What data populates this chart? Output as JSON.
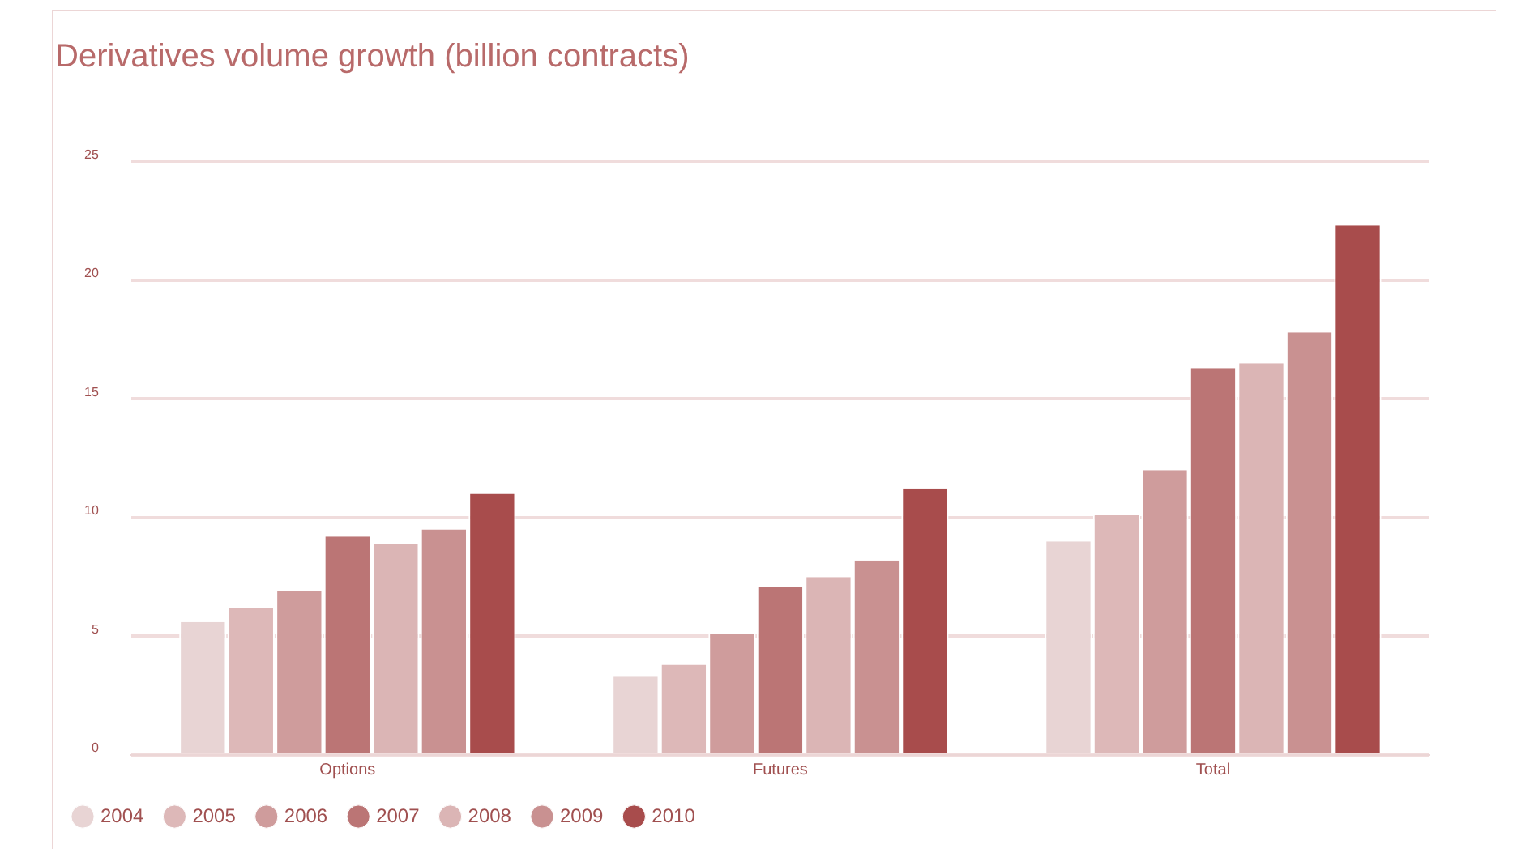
{
  "chart_data": {
    "type": "bar",
    "title": "Derivatives volume growth (billion contracts)",
    "categories": [
      "Options",
      "Futures",
      "Total"
    ],
    "series": [
      {
        "name": "2004",
        "color": "#e8d4d4",
        "values": [
          5.6,
          3.3,
          9.0
        ]
      },
      {
        "name": "2005",
        "color": "#ddb8b8",
        "values": [
          6.2,
          3.8,
          10.1
        ]
      },
      {
        "name": "2006",
        "color": "#cf9c9c",
        "values": [
          6.9,
          5.1,
          12.0
        ]
      },
      {
        "name": "2007",
        "color": "#bb7575",
        "values": [
          9.2,
          7.1,
          16.3
        ]
      },
      {
        "name": "2008",
        "color": "#dbb5b5",
        "values": [
          8.9,
          7.5,
          16.5
        ]
      },
      {
        "name": "2009",
        "color": "#c99191",
        "values": [
          9.5,
          8.2,
          17.8
        ]
      },
      {
        "name": "2010",
        "color": "#a84c4c",
        "values": [
          11.0,
          11.2,
          22.3
        ]
      }
    ],
    "ylim": [
      0,
      25
    ],
    "yticks": [
      0,
      5,
      10,
      15,
      20,
      25
    ],
    "grid": "y",
    "legend": "bottom"
  }
}
